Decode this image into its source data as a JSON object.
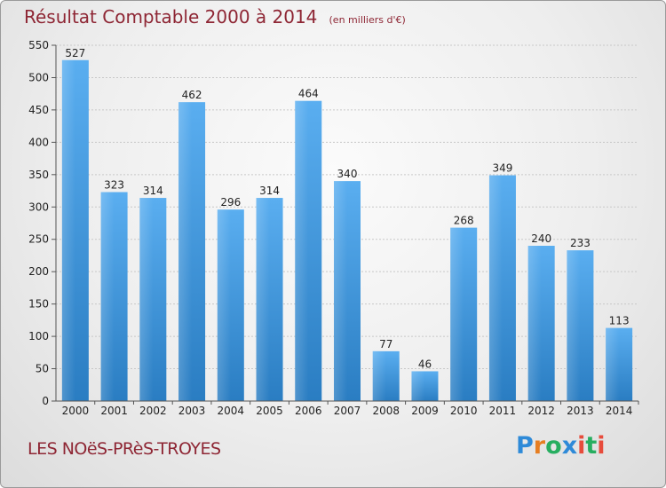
{
  "header": {
    "title": "Résultat Comptable 2000 à 2014",
    "unit": "(en milliers d'€)"
  },
  "footer": {
    "commune": "LES NOëS-PRèS-TROYES",
    "logo_letters": [
      "P",
      "r",
      "o",
      "x",
      "i",
      "t",
      "i"
    ],
    "logo_colors": [
      "#2e8ad8",
      "#e67e22",
      "#27ae60",
      "#2e8ad8",
      "#e74c3c",
      "#27ae60",
      "#e74c3c"
    ]
  },
  "colors": {
    "bar_top": "#5aaef0",
    "bar_bottom": "#2a7dc2",
    "title": "#8e2634"
  },
  "chart_data": {
    "type": "bar",
    "categories": [
      "2000",
      "2001",
      "2002",
      "2003",
      "2004",
      "2005",
      "2006",
      "2007",
      "2008",
      "2009",
      "2010",
      "2011",
      "2012",
      "2013",
      "2014"
    ],
    "values": [
      527,
      323,
      314,
      462,
      296,
      314,
      464,
      340,
      77,
      46,
      268,
      349,
      240,
      233,
      113
    ],
    "ylim": [
      0,
      550
    ],
    "yticks": [
      0,
      50,
      100,
      150,
      200,
      250,
      300,
      350,
      400,
      450,
      500,
      550
    ],
    "grid": true
  }
}
